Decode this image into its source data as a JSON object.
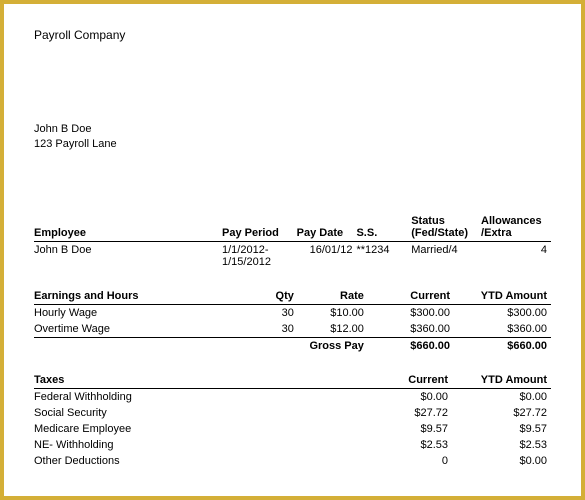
{
  "company": {
    "name": "Payroll Company"
  },
  "recipient": {
    "name": "John B Doe",
    "address": "123 Payroll Lane"
  },
  "empTable": {
    "headers": {
      "employee": "Employee",
      "pay_period": "Pay Period",
      "pay_date": "Pay Date",
      "ss": "S.S.",
      "status": "Status (Fed/State)",
      "allowances": "Allowances /Extra"
    },
    "row": {
      "employee": "John B Doe",
      "pay_period": "1/1/2012-1/15/2012",
      "pay_date": "16/01/12",
      "ss": "**1234",
      "status": "Married/4",
      "allowances": "4"
    }
  },
  "earnings": {
    "title": "Earnings and Hours",
    "headers": {
      "qty": "Qty",
      "rate": "Rate",
      "current": "Current",
      "ytd": "YTD Amount"
    },
    "rows": [
      {
        "label": "Hourly Wage",
        "qty": "30",
        "rate": "$10.00",
        "current": "$300.00",
        "ytd": "$300.00"
      },
      {
        "label": "Overtime Wage",
        "qty": "30",
        "rate": "$12.00",
        "current": "$360.00",
        "ytd": "$360.00"
      }
    ],
    "gross": {
      "label": "Gross Pay",
      "current": "$660.00",
      "ytd": "$660.00"
    }
  },
  "taxes": {
    "title": "Taxes",
    "headers": {
      "current": "Current",
      "ytd": "YTD Amount"
    },
    "rows": [
      {
        "label": "Federal Withholding",
        "current": "$0.00",
        "ytd": "$0.00"
      },
      {
        "label": "Social Security",
        "current": "$27.72",
        "ytd": "$27.72"
      },
      {
        "label": "Medicare Employee",
        "current": "$9.57",
        "ytd": "$9.57"
      },
      {
        "label": "NE- Withholding",
        "current": "$2.53",
        "ytd": "$2.53"
      },
      {
        "label": "Other Deductions",
        "current": "0",
        "ytd": "$0.00"
      }
    ]
  }
}
